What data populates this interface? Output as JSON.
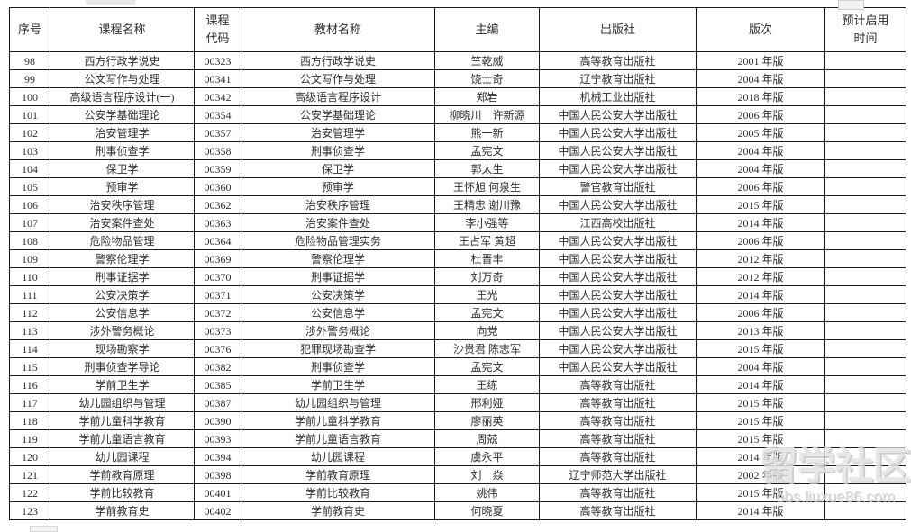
{
  "page": {
    "background": "#ffffff"
  },
  "colors": {
    "border": "#1c1c1c",
    "text": "#2e2e2e",
    "watermark": "#e2e2e2"
  },
  "watermark": {
    "title": "留学社区",
    "url": "bbs.liuxue86.com"
  },
  "table": {
    "headers": [
      "序号",
      "课程名称",
      "课程\n代码",
      "教材名称",
      "主编",
      "出版社",
      "版次",
      "预计启用\n时间"
    ],
    "rows": [
      {
        "no": "98",
        "course": "西方行政学说史",
        "code": "00323",
        "textbook": "西方行政学说史",
        "editor": "竺乾威",
        "publisher": "高等教育出版社",
        "edition": "2001 年版",
        "start_time": ""
      },
      {
        "no": "99",
        "course": "公文写作与处理",
        "code": "00341",
        "textbook": "公文写作与处理",
        "editor": "饶士奇",
        "publisher": "辽宁教育出版社",
        "edition": "2004 年版",
        "start_time": ""
      },
      {
        "no": "100",
        "course": "高级语言程序设计(一)",
        "code": "00342",
        "textbook": "高级语言程序设计",
        "editor": "郑岩",
        "publisher": "机械工业出版社",
        "edition": "2018 年版",
        "start_time": ""
      },
      {
        "no": "101",
        "course": "公安学基础理论",
        "code": "00354",
        "textbook": "公安学基础理论",
        "editor": "柳晓川　许新源",
        "publisher": "中国人民公安大学出版社",
        "edition": "2006 年版",
        "start_time": ""
      },
      {
        "no": "102",
        "course": "治安管理学",
        "code": "00357",
        "textbook": "治安管理学",
        "editor": "熊一新",
        "publisher": "中国人民公安大学出版社",
        "edition": "2005 年版",
        "start_time": ""
      },
      {
        "no": "103",
        "course": "刑事侦查学",
        "code": "00358",
        "textbook": "刑事侦查学",
        "editor": "孟宪文",
        "publisher": "中国人民公安大学出版社",
        "edition": "2004 年版",
        "start_time": ""
      },
      {
        "no": "104",
        "course": "保卫学",
        "code": "00359",
        "textbook": "保卫学",
        "editor": "郭太生",
        "publisher": "中国人民公安大学出版社",
        "edition": "2004 年版",
        "start_time": ""
      },
      {
        "no": "105",
        "course": "预审学",
        "code": "00360",
        "textbook": "预审学",
        "editor": "王怀旭 何泉生",
        "publisher": "警官教育出版社",
        "edition": "2006 年版",
        "start_time": ""
      },
      {
        "no": "106",
        "course": "治安秩序管理",
        "code": "00362",
        "textbook": "治安秩序管理",
        "editor": "王精忠 谢川豫",
        "publisher": "中国人民公安大学出版社",
        "edition": "2015 年版",
        "start_time": ""
      },
      {
        "no": "107",
        "course": "治安案件查处",
        "code": "00363",
        "textbook": "治安案件查处",
        "editor": "李小强等",
        "publisher": "江西高校出版社",
        "edition": "2014 年版",
        "start_time": ""
      },
      {
        "no": "108",
        "course": "危险物品管理",
        "code": "00364",
        "textbook": "危险物品管理实务",
        "editor": "王占军 黄超",
        "publisher": "中国人民公安大学出版社",
        "edition": "2006 年版",
        "start_time": ""
      },
      {
        "no": "109",
        "course": "警察伦理学",
        "code": "00369",
        "textbook": "警察伦理学",
        "editor": "杜晋丰",
        "publisher": "中国人民公安大学出版社",
        "edition": "2012 年版",
        "start_time": ""
      },
      {
        "no": "110",
        "course": "刑事证据学",
        "code": "00370",
        "textbook": "刑事证据学",
        "editor": "刘万奇",
        "publisher": "中国人民公安大学出版社",
        "edition": "2012 年版",
        "start_time": ""
      },
      {
        "no": "111",
        "course": "公安决策学",
        "code": "00371",
        "textbook": "公安决策学",
        "editor": "王光",
        "publisher": "中国人民公安大学出版社",
        "edition": "2014 年版",
        "start_time": ""
      },
      {
        "no": "112",
        "course": "公安信息学",
        "code": "00372",
        "textbook": "公安信息学",
        "editor": "孟宪文",
        "publisher": "中国人民公安大学出版社",
        "edition": "2006 年版",
        "start_time": ""
      },
      {
        "no": "113",
        "course": "涉外警务概论",
        "code": "00373",
        "textbook": "涉外警务概论",
        "editor": "向党",
        "publisher": "中国人民公安大学出版社",
        "edition": "2013 年版",
        "start_time": ""
      },
      {
        "no": "114",
        "course": "现场勘察学",
        "code": "00376",
        "textbook": "犯罪现场勘查学",
        "editor": "沙贵君 陈志军",
        "publisher": "中国人民公安大学出版社",
        "edition": "2015 年版",
        "start_time": ""
      },
      {
        "no": "115",
        "course": "刑事侦查学导论",
        "code": "00382",
        "textbook": "刑事侦查学",
        "editor": "孟宪文",
        "publisher": "中国人民公安大学出版社",
        "edition": "2004 年版",
        "start_time": ""
      },
      {
        "no": "116",
        "course": "学前卫生学",
        "code": "00385",
        "textbook": "学前卫生学",
        "editor": "王练",
        "publisher": "高等教育出版社",
        "edition": "2014 年版",
        "start_time": ""
      },
      {
        "no": "117",
        "course": "幼儿园组织与管理",
        "code": "00387",
        "textbook": "幼儿园组织与管理",
        "editor": "邢利娅",
        "publisher": "高等教育出版社",
        "edition": "2015 年版",
        "start_time": ""
      },
      {
        "no": "118",
        "course": "学前儿童科学教育",
        "code": "00390",
        "textbook": "学前儿童科学教育",
        "editor": "廖丽英",
        "publisher": "高等教育出版社",
        "edition": "2015 年版",
        "start_time": ""
      },
      {
        "no": "119",
        "course": "学前儿童语言教育",
        "code": "00393",
        "textbook": "学前儿童语言教育",
        "editor": "周兢",
        "publisher": "高等教育出版社",
        "edition": "2015 年版",
        "start_time": ""
      },
      {
        "no": "120",
        "course": "幼儿园课程",
        "code": "00394",
        "textbook": "幼儿园课程",
        "editor": "虞永平",
        "publisher": "高等教育出版社",
        "edition": "2014 年版",
        "start_time": ""
      },
      {
        "no": "121",
        "course": "学前教育原理",
        "code": "00398",
        "textbook": "学前教育原理",
        "editor": "刘　焱",
        "publisher": "辽宁师范大学出版社",
        "edition": "2002 年版",
        "start_time": ""
      },
      {
        "no": "122",
        "course": "学前比较教育",
        "code": "00401",
        "textbook": "学前比较教育",
        "editor": "姚伟",
        "publisher": "高等教育出版社",
        "edition": "2015 年版",
        "start_time": ""
      },
      {
        "no": "123",
        "course": "学前教育史",
        "code": "00402",
        "textbook": "学前教育史",
        "editor": "何晓夏",
        "publisher": "高等教育出版社",
        "edition": "2014 年版",
        "start_time": ""
      }
    ]
  }
}
